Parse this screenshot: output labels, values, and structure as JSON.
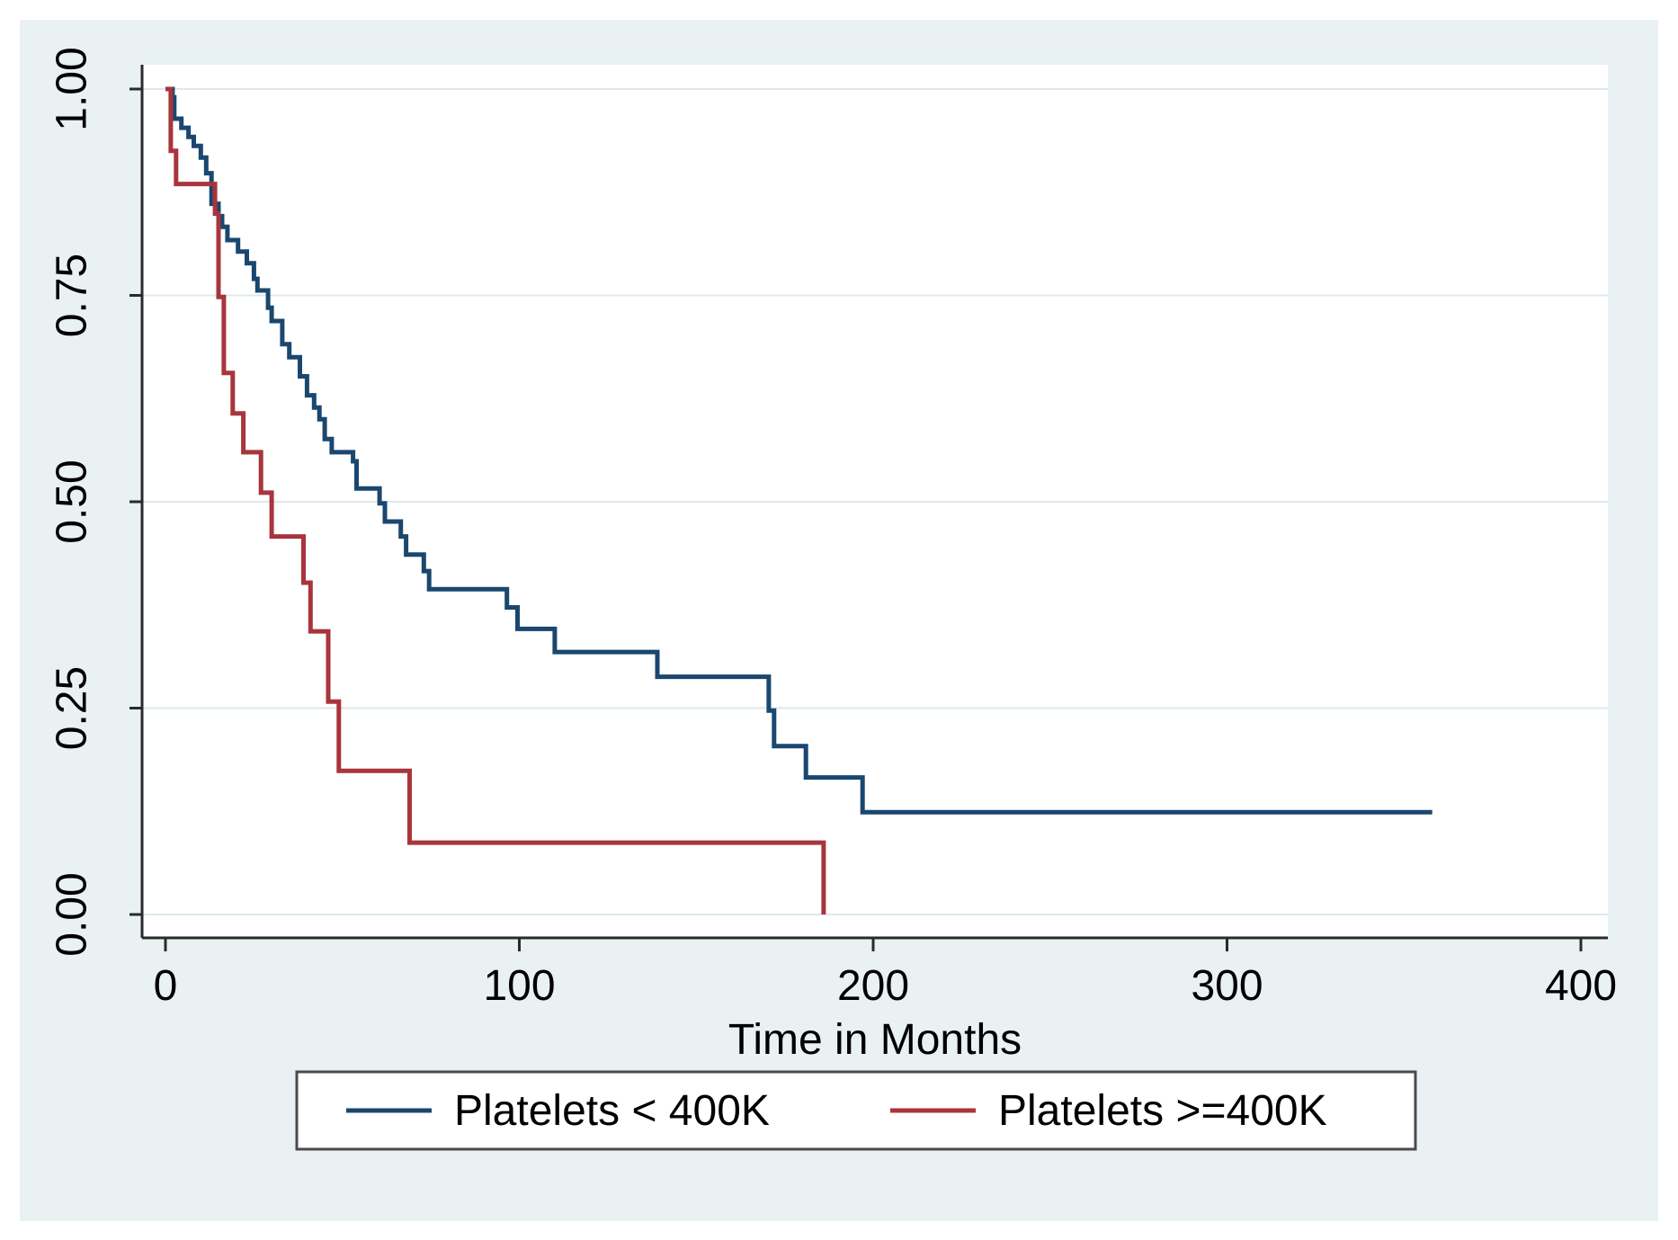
{
  "figure": {
    "background_color": "#e9f1f2",
    "plot_background": "#ffffff",
    "axis_color": "#2a2a2a",
    "gridline_color": "#dde9eb",
    "legend_border_color": "#4a4a4a",
    "legend_background": "#ffffff"
  },
  "chart_data": {
    "type": "line",
    "subtype": "kaplan-meier-step",
    "title": "",
    "xlabel": "Time in Months",
    "ylabel": "",
    "xlim": [
      0,
      400
    ],
    "xticks": [
      "0",
      "100",
      "200",
      "300",
      "400"
    ],
    "ylim": [
      0,
      1
    ],
    "yticks": [
      "0.00",
      "0.25",
      "0.50",
      "0.75",
      "1.00"
    ],
    "grid": "horizontal",
    "legend_position": "bottom-center",
    "series": [
      {
        "name": "Platelets < 400K",
        "color": "#1a476f",
        "points": [
          [
            0,
            1.0
          ],
          [
            2,
            0.99
          ],
          [
            2.5,
            0.964
          ],
          [
            4.5,
            0.953
          ],
          [
            6.5,
            0.942
          ],
          [
            8,
            0.931
          ],
          [
            10,
            0.917
          ],
          [
            11.5,
            0.898
          ],
          [
            13,
            0.861
          ],
          [
            15,
            0.846
          ],
          [
            16,
            0.833
          ],
          [
            17.5,
            0.817
          ],
          [
            20.5,
            0.803
          ],
          [
            23,
            0.789
          ],
          [
            25,
            0.77
          ],
          [
            26,
            0.756
          ],
          [
            29,
            0.735
          ],
          [
            30,
            0.719
          ],
          [
            33,
            0.691
          ],
          [
            35,
            0.675
          ],
          [
            38,
            0.652
          ],
          [
            40,
            0.629
          ],
          [
            42,
            0.614
          ],
          [
            43.5,
            0.6
          ],
          [
            45,
            0.576
          ],
          [
            47,
            0.56
          ],
          [
            53,
            0.549
          ],
          [
            54,
            0.516
          ],
          [
            60.5,
            0.498
          ],
          [
            62,
            0.476
          ],
          [
            66.5,
            0.458
          ],
          [
            68,
            0.436
          ],
          [
            73,
            0.416
          ],
          [
            74.5,
            0.394
          ],
          [
            96.5,
            0.372
          ],
          [
            99.5,
            0.346
          ],
          [
            110,
            0.318
          ],
          [
            139,
            0.288
          ],
          [
            170.5,
            0.247
          ],
          [
            172,
            0.204
          ],
          [
            181,
            0.166
          ],
          [
            197,
            0.124
          ],
          [
            358,
            0.124
          ]
        ]
      },
      {
        "name": "Platelets >=400K",
        "color": "#a8353c",
        "points": [
          [
            0,
            1.0
          ],
          [
            1.5,
            0.925
          ],
          [
            3,
            0.885
          ],
          [
            14,
            0.849
          ],
          [
            15,
            0.748
          ],
          [
            16.5,
            0.656
          ],
          [
            19,
            0.607
          ],
          [
            22,
            0.56
          ],
          [
            27,
            0.511
          ],
          [
            30,
            0.458
          ],
          [
            39,
            0.402
          ],
          [
            41,
            0.343
          ],
          [
            46,
            0.258
          ],
          [
            49,
            0.174
          ],
          [
            69,
            0.087
          ],
          [
            186,
            0.0
          ]
        ]
      }
    ]
  }
}
